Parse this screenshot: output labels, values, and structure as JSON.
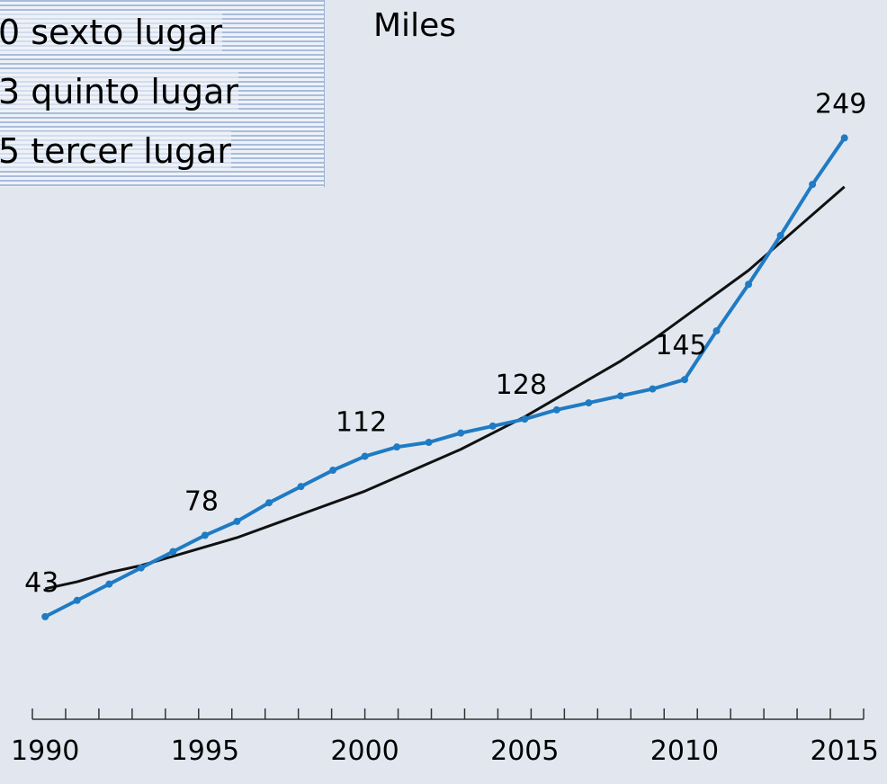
{
  "chart_data": {
    "type": "line",
    "unit_label": "Miles",
    "annotations": [
      "0 sexto lugar",
      "3 quinto lugar",
      "5 tercer lugar"
    ],
    "x": [
      1990,
      1991,
      1992,
      1993,
      1994,
      1995,
      1996,
      1997,
      1998,
      1999,
      2000,
      2001,
      2002,
      2003,
      2004,
      2005,
      2006,
      2007,
      2008,
      2009,
      2010,
      2011,
      2012,
      2013,
      2014,
      2015
    ],
    "series": [
      {
        "color": "#1f7bc4",
        "markers": true,
        "values": [
          43,
          50,
          57,
          64,
          71,
          78,
          84,
          92,
          99,
          106,
          112,
          116,
          118,
          122,
          125,
          128,
          132,
          135,
          138,
          141,
          145,
          166,
          186,
          207,
          229,
          249
        ],
        "value_labels": [
          "43",
          null,
          null,
          null,
          null,
          "78",
          null,
          null,
          null,
          null,
          "112",
          null,
          null,
          null,
          null,
          "128",
          null,
          null,
          null,
          null,
          "145",
          null,
          null,
          null,
          null,
          "249"
        ]
      },
      {
        "color": "#111111",
        "markers": false,
        "values": [
          55,
          58,
          62,
          65,
          69,
          73,
          77,
          82,
          87,
          92,
          97,
          103,
          109,
          115,
          122,
          129,
          137,
          145,
          153,
          162,
          172,
          182,
          192,
          204,
          216,
          228
        ]
      }
    ],
    "xlim": [
      1989.6,
      2015.6
    ],
    "xticks": [
      1990,
      1995,
      2000,
      2005,
      2010,
      2015
    ],
    "ylim": [
      0,
      260
    ]
  }
}
